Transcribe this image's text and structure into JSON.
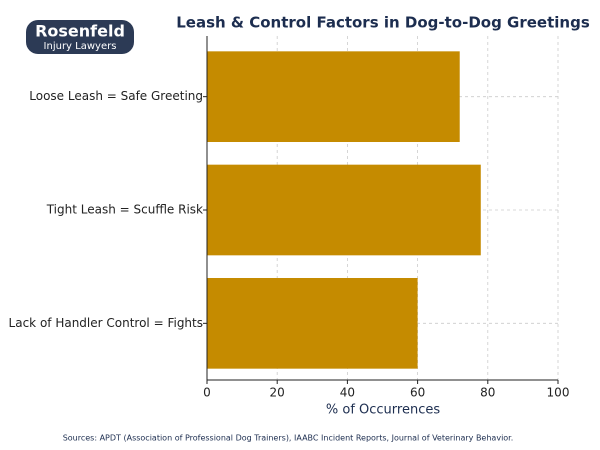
{
  "logo": {
    "name": "Rosenfeld",
    "tagline": "Injury Lawyers"
  },
  "chart_data": {
    "type": "bar",
    "orientation": "horizontal",
    "title": "Leash & Control Factors in Dog-to-Dog Greetings",
    "categories": [
      "Loose Leash = Safe Greeting",
      "Tight Leash = Scuffle Risk",
      "Lack of Handler Control = Fights"
    ],
    "values": [
      72,
      78,
      60
    ],
    "color": "#c58b00",
    "xlim": [
      0,
      100
    ],
    "xticks": [
      0,
      20,
      40,
      60,
      80,
      100
    ],
    "xlabel": "% of Occurrences",
    "grid": true,
    "source": "Sources: APDT (Association of Professional Dog Trainers), IAABC Incident Reports, Journal of Veterinary Behavior."
  }
}
